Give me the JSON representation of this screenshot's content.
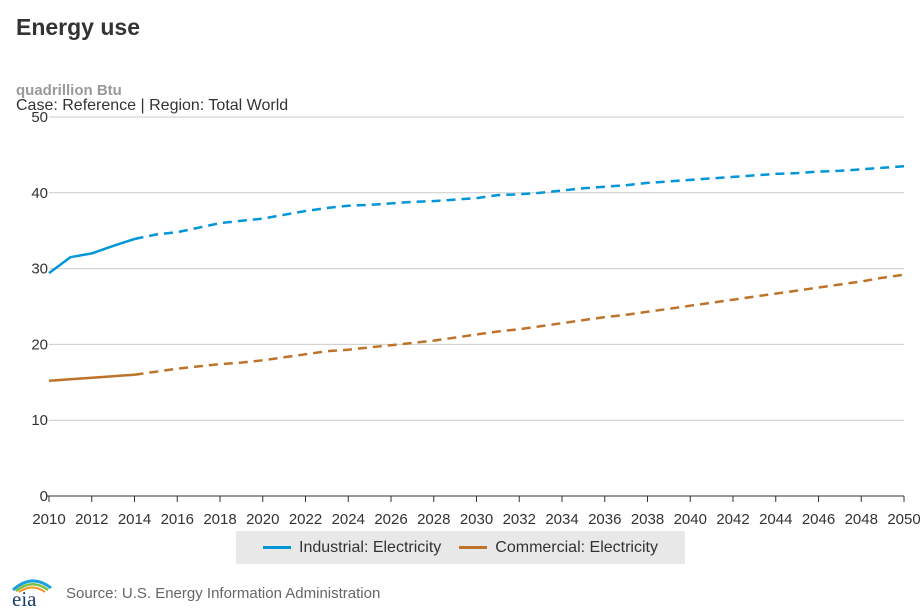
{
  "header": {
    "title": "Energy use",
    "units": "quadrillion Btu",
    "subtitle": "Case: Reference | Region: Total World"
  },
  "footer": {
    "logo_text": "eia",
    "source": "Source: U.S. Energy Information Administration"
  },
  "colors": {
    "industrial": "#0096d7",
    "commercial": "#bd732a",
    "grid": "#cccccc",
    "axis": "#333333"
  },
  "chart_data": {
    "type": "line",
    "title": "Energy use",
    "ylabel": "quadrillion Btu",
    "xlim": [
      2010,
      2050
    ],
    "ylim": [
      0,
      50
    ],
    "xticks": [
      "2010",
      "2012",
      "2014",
      "2016",
      "2018",
      "2020",
      "2022",
      "2024",
      "2026",
      "2028",
      "2030",
      "2032",
      "2034",
      "2036",
      "2038",
      "2040",
      "2042",
      "2044",
      "2046",
      "2048",
      "2050"
    ],
    "yticks": [
      "0",
      "10",
      "20",
      "30",
      "40",
      "50"
    ],
    "history_end": 2014,
    "legend_position": "bottom",
    "grid": true,
    "x": [
      2010,
      2011,
      2012,
      2013,
      2014,
      2015,
      2016,
      2017,
      2018,
      2019,
      2020,
      2021,
      2022,
      2023,
      2024,
      2025,
      2026,
      2027,
      2028,
      2029,
      2030,
      2031,
      2032,
      2033,
      2034,
      2035,
      2036,
      2037,
      2038,
      2039,
      2040,
      2041,
      2042,
      2043,
      2044,
      2045,
      2046,
      2047,
      2048,
      2049,
      2050
    ],
    "series": [
      {
        "name": "Industrial: Electricity",
        "color_key": "industrial",
        "values": [
          29.4,
          31.5,
          32.0,
          33.0,
          33.9,
          34.5,
          34.8,
          35.4,
          36.0,
          36.3,
          36.6,
          37.1,
          37.6,
          38.0,
          38.3,
          38.4,
          38.6,
          38.8,
          38.9,
          39.1,
          39.3,
          39.7,
          39.8,
          40.0,
          40.3,
          40.6,
          40.8,
          41.0,
          41.3,
          41.5,
          41.7,
          41.9,
          42.1,
          42.3,
          42.5,
          42.6,
          42.8,
          42.9,
          43.1,
          43.3,
          43.5
        ]
      },
      {
        "name": "Commercial: Electricity",
        "color_key": "commercial",
        "values": [
          15.2,
          15.4,
          15.6,
          15.8,
          16.0,
          16.4,
          16.8,
          17.1,
          17.4,
          17.6,
          17.9,
          18.3,
          18.7,
          19.1,
          19.3,
          19.6,
          19.9,
          20.2,
          20.5,
          20.9,
          21.3,
          21.7,
          22.0,
          22.4,
          22.8,
          23.2,
          23.6,
          23.9,
          24.3,
          24.7,
          25.1,
          25.5,
          25.9,
          26.3,
          26.7,
          27.1,
          27.5,
          27.9,
          28.3,
          28.8,
          29.2
        ]
      }
    ]
  }
}
